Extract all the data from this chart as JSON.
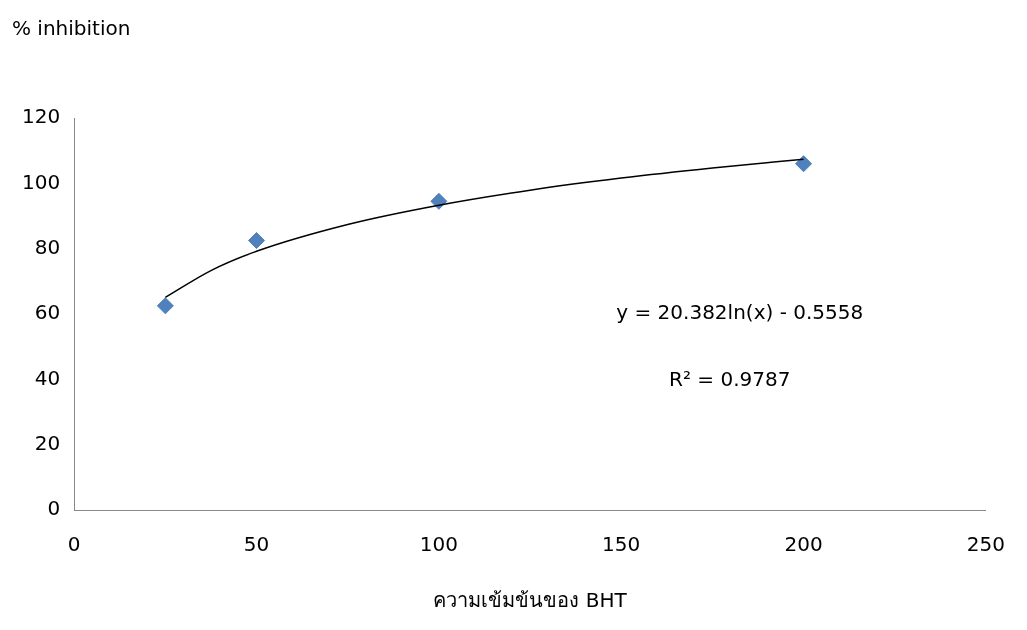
{
  "chart_data": {
    "type": "scatter",
    "xlabel": "ความเข้มข้นของ BHT",
    "ylabel": "% inhibition",
    "x": [
      25,
      50,
      100,
      200
    ],
    "series": [
      {
        "type": "scatter",
        "color": "#4f81bd",
        "marker": "diamond",
        "values": [
          62.5,
          82.5,
          94.5,
          106
        ]
      },
      {
        "type": "line",
        "color": "#000000",
        "marker": "none",
        "x": [
          25,
          37.5,
          50,
          75,
          100,
          125,
          150,
          175,
          200
        ],
        "values": [
          65.1,
          73.3,
          79.2,
          87.4,
          93.3,
          97.9,
          101.6,
          104.7,
          107.4
        ]
      }
    ],
    "xlim": [
      0,
      250
    ],
    "xticks": [
      0,
      50,
      100,
      150,
      200,
      250
    ],
    "ylim": [
      0,
      120
    ],
    "yticks": [
      0,
      20,
      40,
      60,
      80,
      100,
      120
    ],
    "grid": false,
    "legend": false,
    "annotations": [
      "y = 20.382ln(x) - 0.5558",
      "R² = 0.9787"
    ]
  }
}
